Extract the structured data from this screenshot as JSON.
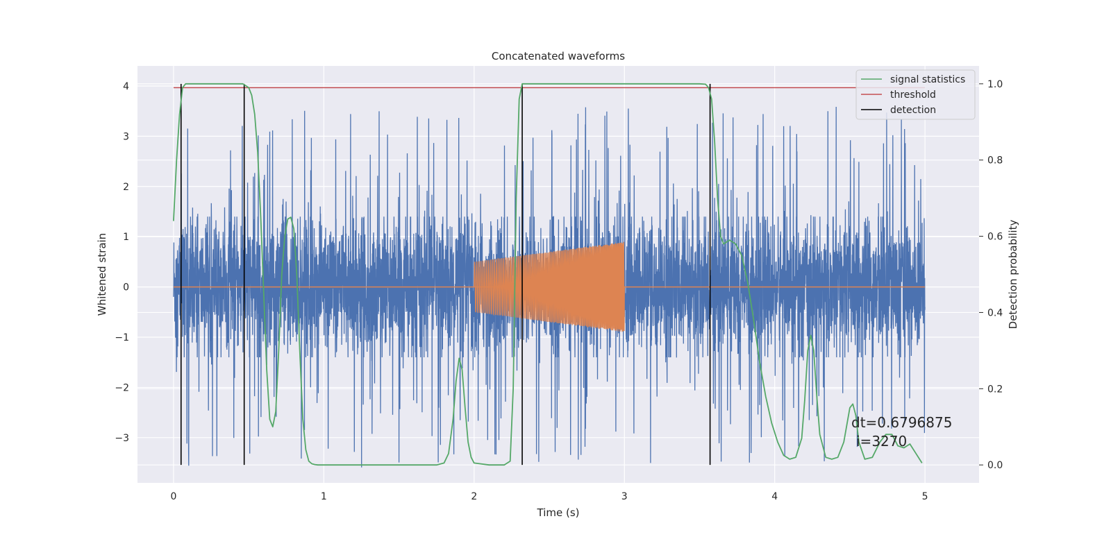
{
  "chart_data": {
    "type": "line",
    "title": "Concatenated waveforms",
    "xlabel": "Time (s)",
    "ylabel": "Whitened strain",
    "y2label": "Detection probability",
    "xlim": [
      -0.24,
      5.36
    ],
    "ylim": [
      -3.9,
      4.4
    ],
    "y2lim": [
      -0.047,
      1.047
    ],
    "xticks": [
      0,
      1,
      2,
      3,
      4,
      5
    ],
    "yticks": [
      -3,
      -2,
      -1,
      0,
      1,
      2,
      3,
      4
    ],
    "y2ticks": [
      0.0,
      0.2,
      0.4,
      0.6,
      0.8,
      1.0
    ],
    "xtick_labels": [
      "0",
      "1",
      "2",
      "3",
      "4",
      "5"
    ],
    "ytick_labels": [
      "−3",
      "−2",
      "−1",
      "0",
      "1",
      "2",
      "3",
      "4"
    ],
    "y2tick_labels": [
      "0.0",
      "0.2",
      "0.4",
      "0.6",
      "0.8",
      "1.0"
    ],
    "grid": true,
    "legend_position": "top-right",
    "colors": {
      "noise": "#4c72b0",
      "waveform": "#dd8452",
      "signal_statistics": "#55a868",
      "threshold": "#c44e52",
      "detection": "#000000",
      "background": "#eaeaf2",
      "grid": "#ffffff"
    },
    "legend": [
      {
        "label": "signal statistics",
        "color": "#55a868"
      },
      {
        "label": "threshold",
        "color": "#c44e52"
      },
      {
        "label": "detection",
        "color": "#000000"
      }
    ],
    "noise": {
      "name": "whitened strain",
      "x_range": [
        0,
        5
      ],
      "core_amplitude": 1.4,
      "spike_max_amplitude": 3.6
    },
    "waveform": {
      "x_range": [
        2.0,
        3.0
      ],
      "amplitude_start": 0.5,
      "amplitude_end": 0.9,
      "baseline_range": [
        0,
        5
      ]
    },
    "signal_statistics": {
      "x": [
        0.0,
        0.02,
        0.04,
        0.06,
        0.08,
        0.12,
        0.2,
        0.3,
        0.4,
        0.46,
        0.5,
        0.52,
        0.54,
        0.56,
        0.58,
        0.6,
        0.62,
        0.64,
        0.66,
        0.68,
        0.7,
        0.72,
        0.74,
        0.76,
        0.78,
        0.8,
        0.82,
        0.84,
        0.86,
        0.88,
        0.9,
        0.92,
        0.94,
        0.96,
        1.0,
        1.2,
        1.4,
        1.6,
        1.75,
        1.8,
        1.83,
        1.86,
        1.88,
        1.9,
        1.92,
        1.94,
        1.96,
        1.98,
        2.0,
        2.1,
        2.2,
        2.24,
        2.26,
        2.28,
        2.3,
        2.32,
        2.34,
        2.4,
        2.6,
        2.8,
        3.0,
        3.2,
        3.4,
        3.5,
        3.54,
        3.56,
        3.58,
        3.6,
        3.62,
        3.64,
        3.66,
        3.68,
        3.7,
        3.74,
        3.78,
        3.82,
        3.86,
        3.9,
        3.94,
        3.98,
        4.02,
        4.06,
        4.1,
        4.14,
        4.18,
        4.2,
        4.22,
        4.24,
        4.26,
        4.28,
        4.3,
        4.34,
        4.38,
        4.42,
        4.46,
        4.5,
        4.52,
        4.54,
        4.56,
        4.6,
        4.65,
        4.7,
        4.74,
        4.78,
        4.82,
        4.86,
        4.9,
        4.94,
        4.98
      ],
      "y": [
        0.64,
        0.8,
        0.92,
        0.99,
        1.0,
        1.0,
        1.0,
        1.0,
        1.0,
        1.0,
        0.99,
        0.97,
        0.92,
        0.82,
        0.65,
        0.45,
        0.25,
        0.12,
        0.1,
        0.14,
        0.3,
        0.5,
        0.6,
        0.645,
        0.65,
        0.62,
        0.5,
        0.3,
        0.12,
        0.04,
        0.01,
        0.003,
        0.001,
        0.0,
        0.0,
        0.0,
        0.0,
        0.0,
        0.0,
        0.005,
        0.03,
        0.12,
        0.22,
        0.28,
        0.25,
        0.15,
        0.06,
        0.02,
        0.005,
        0.0,
        0.0,
        0.01,
        0.2,
        0.7,
        0.96,
        1.0,
        1.0,
        1.0,
        1.0,
        1.0,
        1.0,
        1.0,
        1.0,
        1.0,
        0.999,
        0.99,
        0.96,
        0.85,
        0.7,
        0.6,
        0.58,
        0.585,
        0.59,
        0.58,
        0.55,
        0.48,
        0.38,
        0.27,
        0.18,
        0.11,
        0.06,
        0.025,
        0.015,
        0.02,
        0.07,
        0.17,
        0.3,
        0.34,
        0.3,
        0.18,
        0.08,
        0.02,
        0.015,
        0.02,
        0.06,
        0.15,
        0.16,
        0.13,
        0.06,
        0.015,
        0.02,
        0.06,
        0.08,
        0.08,
        0.05,
        0.045,
        0.055,
        0.03,
        0.005
      ]
    },
    "threshold": {
      "value": 0.99,
      "x_range": [
        0,
        5
      ]
    },
    "detections": [
      0.05,
      0.47,
      2.32,
      3.57
    ],
    "annotation": {
      "line1": "dt=0.6796875",
      "line2": "i=3270"
    }
  }
}
